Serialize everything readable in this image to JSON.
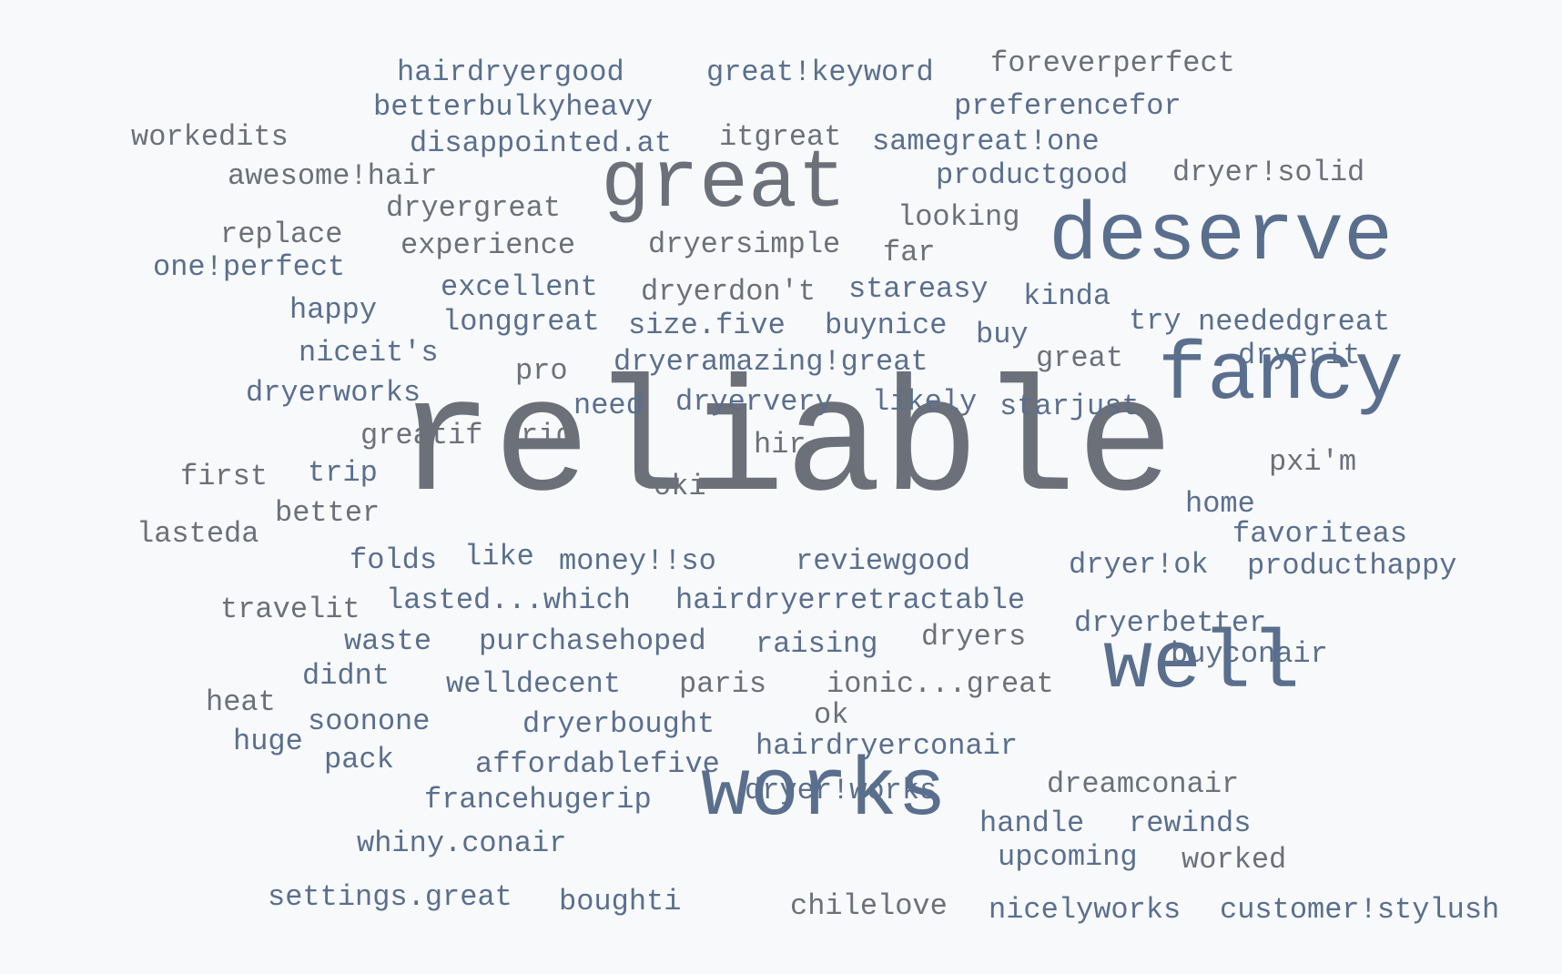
{
  "colors": {
    "gray": "#6c7079",
    "blue": "#5a6f8d"
  },
  "words": [
    {
      "text": "reliable",
      "weight": 10,
      "color": "gray"
    },
    {
      "text": "great",
      "weight": 7,
      "color": "gray"
    },
    {
      "text": "deserve",
      "weight": 7,
      "color": "blue"
    },
    {
      "text": "fancy",
      "weight": 7,
      "color": "blue"
    },
    {
      "text": "well",
      "weight": 7,
      "color": "blue"
    },
    {
      "text": "works",
      "weight": 7,
      "color": "blue"
    },
    {
      "text": "hairdryergood",
      "weight": 2,
      "color": "blue"
    },
    {
      "text": "great!keyword",
      "weight": 2,
      "color": "blue"
    },
    {
      "text": "foreverperfect",
      "weight": 2,
      "color": "gray"
    },
    {
      "text": "betterbulkyheavy",
      "weight": 2,
      "color": "blue"
    },
    {
      "text": "preferencefor",
      "weight": 2,
      "color": "blue"
    },
    {
      "text": "workedits",
      "weight": 2,
      "color": "gray"
    },
    {
      "text": "disappointed.at",
      "weight": 2,
      "color": "blue"
    },
    {
      "text": "itgreat",
      "weight": 2,
      "color": "gray"
    },
    {
      "text": "samegreat!one",
      "weight": 2,
      "color": "blue"
    },
    {
      "text": "awesome!hair",
      "weight": 2,
      "color": "gray"
    },
    {
      "text": "productgood",
      "weight": 2,
      "color": "blue"
    },
    {
      "text": "dryer!solid",
      "weight": 2,
      "color": "gray"
    },
    {
      "text": "dryergreat",
      "weight": 2,
      "color": "gray"
    },
    {
      "text": "looking",
      "weight": 2,
      "color": "gray"
    },
    {
      "text": "replace",
      "weight": 2,
      "color": "gray"
    },
    {
      "text": "experience",
      "weight": 2,
      "color": "gray"
    },
    {
      "text": "dryersimple",
      "weight": 2,
      "color": "gray"
    },
    {
      "text": "far",
      "weight": 2,
      "color": "gray"
    },
    {
      "text": "one!perfect",
      "weight": 2,
      "color": "blue"
    },
    {
      "text": "excellent",
      "weight": 2,
      "color": "blue"
    },
    {
      "text": "dryerdon't",
      "weight": 2,
      "color": "gray"
    },
    {
      "text": "stareasy",
      "weight": 2,
      "color": "blue"
    },
    {
      "text": "kinda",
      "weight": 2,
      "color": "blue"
    },
    {
      "text": "happy",
      "weight": 2,
      "color": "blue"
    },
    {
      "text": "longgreat",
      "weight": 2,
      "color": "blue"
    },
    {
      "text": "size.five",
      "weight": 2,
      "color": "blue"
    },
    {
      "text": "buynice",
      "weight": 2,
      "color": "blue"
    },
    {
      "text": "buy",
      "weight": 2,
      "color": "blue"
    },
    {
      "text": "try",
      "weight": 2,
      "color": "blue"
    },
    {
      "text": "neededgreat",
      "weight": 2,
      "color": "blue"
    },
    {
      "text": "niceit's",
      "weight": 2,
      "color": "blue"
    },
    {
      "text": "pro",
      "weight": 2,
      "color": "gray"
    },
    {
      "text": "dryeramazing!great",
      "weight": 2,
      "color": "blue"
    },
    {
      "text": "great",
      "weight": 2,
      "color": "gray"
    },
    {
      "text": "dryerit",
      "weight": 2,
      "color": "blue"
    },
    {
      "text": "dryerworks",
      "weight": 2,
      "color": "blue"
    },
    {
      "text": "need",
      "weight": 2,
      "color": "blue"
    },
    {
      "text": "dryervery",
      "weight": 2,
      "color": "blue"
    },
    {
      "text": "likely",
      "weight": 2,
      "color": "blue"
    },
    {
      "text": "starjust",
      "weight": 2,
      "color": "blue"
    },
    {
      "text": "greatif",
      "weight": 2,
      "color": "gray"
    },
    {
      "text": "rid",
      "weight": 2,
      "color": "gray"
    },
    {
      "text": "hir",
      "weight": 2,
      "color": "gray"
    },
    {
      "text": "first",
      "weight": 2,
      "color": "gray"
    },
    {
      "text": "trip",
      "weight": 2,
      "color": "blue"
    },
    {
      "text": "oki",
      "weight": 2,
      "color": "gray"
    },
    {
      "text": "pxi'm",
      "weight": 2,
      "color": "gray"
    },
    {
      "text": "better",
      "weight": 2,
      "color": "gray"
    },
    {
      "text": "home",
      "weight": 2,
      "color": "blue"
    },
    {
      "text": "lasteda",
      "weight": 2,
      "color": "gray"
    },
    {
      "text": "favoriteas",
      "weight": 2,
      "color": "blue"
    },
    {
      "text": "folds",
      "weight": 2,
      "color": "blue"
    },
    {
      "text": "like",
      "weight": 2,
      "color": "blue"
    },
    {
      "text": "money!!so",
      "weight": 2,
      "color": "blue"
    },
    {
      "text": "reviewgood",
      "weight": 2,
      "color": "blue"
    },
    {
      "text": "dryer!ok",
      "weight": 2,
      "color": "blue"
    },
    {
      "text": "producthappy",
      "weight": 2,
      "color": "blue"
    },
    {
      "text": "travelit",
      "weight": 2,
      "color": "gray"
    },
    {
      "text": "lasted...which",
      "weight": 2,
      "color": "blue"
    },
    {
      "text": "hairdryerretractable",
      "weight": 2,
      "color": "blue"
    },
    {
      "text": "dryerbetter",
      "weight": 2,
      "color": "blue"
    },
    {
      "text": "waste",
      "weight": 2,
      "color": "blue"
    },
    {
      "text": "purchasehoped",
      "weight": 2,
      "color": "blue"
    },
    {
      "text": "raising",
      "weight": 2,
      "color": "blue"
    },
    {
      "text": "dryers",
      "weight": 2,
      "color": "gray"
    },
    {
      "text": "buyconair",
      "weight": 2,
      "color": "blue"
    },
    {
      "text": "didnt",
      "weight": 2,
      "color": "blue"
    },
    {
      "text": "welldecent",
      "weight": 2,
      "color": "blue"
    },
    {
      "text": "paris",
      "weight": 2,
      "color": "gray"
    },
    {
      "text": "ionic...great",
      "weight": 2,
      "color": "gray"
    },
    {
      "text": "heat",
      "weight": 2,
      "color": "gray"
    },
    {
      "text": "soonone",
      "weight": 2,
      "color": "blue"
    },
    {
      "text": "ok",
      "weight": 2,
      "color": "gray"
    },
    {
      "text": "dryerbought",
      "weight": 2,
      "color": "blue"
    },
    {
      "text": "huge",
      "weight": 2,
      "color": "blue"
    },
    {
      "text": "hairdryerconair",
      "weight": 2,
      "color": "blue"
    },
    {
      "text": "pack",
      "weight": 2,
      "color": "blue"
    },
    {
      "text": "affordablefive",
      "weight": 2,
      "color": "blue"
    },
    {
      "text": "dreamconair",
      "weight": 2,
      "color": "gray"
    },
    {
      "text": "dryer!works",
      "weight": 2,
      "color": "blue"
    },
    {
      "text": "francehugerip",
      "weight": 2,
      "color": "blue"
    },
    {
      "text": "handle",
      "weight": 2,
      "color": "blue"
    },
    {
      "text": "rewinds",
      "weight": 2,
      "color": "blue"
    },
    {
      "text": "whiny.conair",
      "weight": 2,
      "color": "blue"
    },
    {
      "text": "upcoming",
      "weight": 2,
      "color": "blue"
    },
    {
      "text": "worked",
      "weight": 2,
      "color": "gray"
    },
    {
      "text": "settings.great",
      "weight": 2,
      "color": "blue"
    },
    {
      "text": "boughti",
      "weight": 2,
      "color": "blue"
    },
    {
      "text": "chilelove",
      "weight": 2,
      "color": "gray"
    },
    {
      "text": "nicelyworks",
      "weight": 2,
      "color": "blue"
    },
    {
      "text": "customer!stylush",
      "weight": 2,
      "color": "blue"
    }
  ]
}
